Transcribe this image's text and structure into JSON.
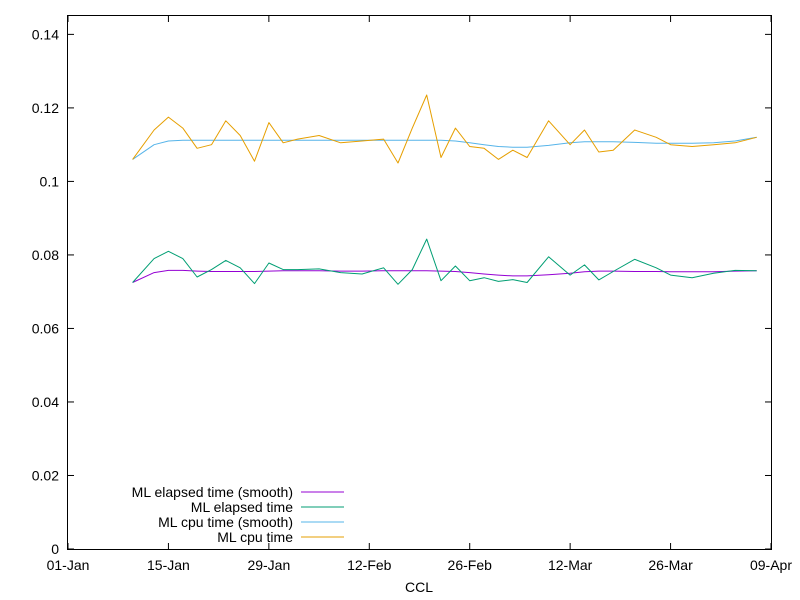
{
  "chart_data": {
    "type": "line",
    "title": "",
    "xlabel": "CCL",
    "ylabel": "",
    "x_ticks": [
      "01-Jan",
      "15-Jan",
      "29-Jan",
      "12-Feb",
      "26-Feb",
      "12-Mar",
      "26-Mar",
      "09-Apr"
    ],
    "y_ticks": [
      "0",
      "0.02",
      "0.04",
      "0.06",
      "0.08",
      "0.1",
      "0.12",
      "0.14"
    ],
    "xlim": [
      "01-Jan",
      "09-Apr"
    ],
    "ylim": [
      0,
      0.145
    ],
    "grid": false,
    "legend_position": "bottom-left",
    "x": [
      "10-Jan",
      "13-Jan",
      "15-Jan",
      "17-Jan",
      "19-Jan",
      "21-Jan",
      "23-Jan",
      "25-Jan",
      "27-Jan",
      "29-Jan",
      "31-Jan",
      "02-Feb",
      "05-Feb",
      "08-Feb",
      "11-Feb",
      "14-Feb",
      "16-Feb",
      "18-Feb",
      "20-Feb",
      "22-Feb",
      "24-Feb",
      "26-Feb",
      "28-Feb",
      "02-Mar",
      "04-Mar",
      "06-Mar",
      "09-Mar",
      "12-Mar",
      "14-Mar",
      "16-Mar",
      "18-Mar",
      "21-Mar",
      "24-Mar",
      "26-Mar",
      "29-Mar",
      "01-Apr",
      "04-Apr",
      "07-Apr"
    ],
    "series": [
      {
        "name": "ML elapsed time (smooth)",
        "color": "#9400d3",
        "values": [
          0.0725,
          0.0752,
          0.0758,
          0.0758,
          0.0756,
          0.0755,
          0.0755,
          0.0755,
          0.0755,
          0.0756,
          0.0757,
          0.0757,
          0.0757,
          0.0756,
          0.0756,
          0.0757,
          0.0757,
          0.0757,
          0.0757,
          0.0756,
          0.0755,
          0.0752,
          0.0748,
          0.0745,
          0.0743,
          0.0743,
          0.0746,
          0.075,
          0.0754,
          0.0756,
          0.0756,
          0.0755,
          0.0755,
          0.0754,
          0.0754,
          0.0754,
          0.0756,
          0.0757
        ]
      },
      {
        "name": "ML elapsed time",
        "color": "#009e73",
        "values": [
          0.0725,
          0.079,
          0.081,
          0.079,
          0.074,
          0.076,
          0.0785,
          0.0765,
          0.0722,
          0.0778,
          0.076,
          0.076,
          0.0762,
          0.0752,
          0.0748,
          0.0765,
          0.072,
          0.076,
          0.0843,
          0.073,
          0.077,
          0.073,
          0.0738,
          0.0728,
          0.0733,
          0.0725,
          0.0795,
          0.0745,
          0.0773,
          0.0732,
          0.0755,
          0.0788,
          0.0765,
          0.0745,
          0.0738,
          0.075,
          0.0758,
          0.0757
        ]
      },
      {
        "name": "ML cpu time (smooth)",
        "color": "#56b4e9",
        "values": [
          0.106,
          0.11,
          0.111,
          0.1112,
          0.1112,
          0.1112,
          0.1112,
          0.1112,
          0.1112,
          0.1112,
          0.1112,
          0.1112,
          0.1112,
          0.1112,
          0.1112,
          0.1112,
          0.1112,
          0.1112,
          0.1112,
          0.1112,
          0.111,
          0.1105,
          0.11,
          0.1095,
          0.1093,
          0.1093,
          0.1098,
          0.1105,
          0.1108,
          0.1108,
          0.1108,
          0.1106,
          0.1104,
          0.1104,
          0.1104,
          0.1105,
          0.111,
          0.112
        ]
      },
      {
        "name": "ML cpu time",
        "color": "#e69f00",
        "values": [
          0.106,
          0.114,
          0.1175,
          0.1145,
          0.109,
          0.11,
          0.1165,
          0.1125,
          0.1055,
          0.116,
          0.1105,
          0.1115,
          0.1125,
          0.1105,
          0.111,
          0.1115,
          0.105,
          0.1145,
          0.1235,
          0.1065,
          0.1145,
          0.1095,
          0.109,
          0.106,
          0.1085,
          0.1065,
          0.1165,
          0.11,
          0.114,
          0.108,
          0.1085,
          0.114,
          0.112,
          0.11,
          0.1095,
          0.11,
          0.1105,
          0.112
        ]
      }
    ]
  }
}
